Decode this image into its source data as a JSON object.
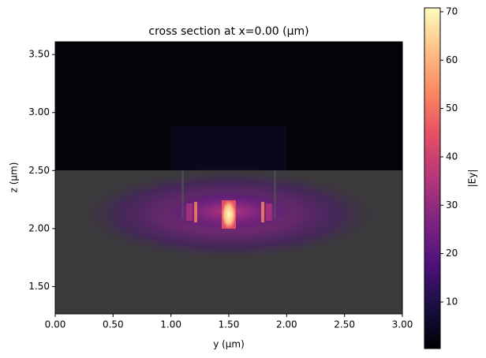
{
  "chart_data": {
    "type": "heatmap",
    "title": "cross section at x=0.00 (μm)",
    "x_label": "y (μm)",
    "y_label": "z (μm)",
    "xlim": [
      0,
      3
    ],
    "ylim": [
      1.265,
      3.61
    ],
    "xticks": [
      {
        "value": 0,
        "label": "0.00"
      },
      {
        "value": 0.5,
        "label": "0.50"
      },
      {
        "value": 1,
        "label": "1.00"
      },
      {
        "value": 1.5,
        "label": "1.50"
      },
      {
        "value": 2,
        "label": "2.00"
      },
      {
        "value": 2.5,
        "label": "2.50"
      },
      {
        "value": 3,
        "label": "3.00"
      }
    ],
    "yticks": [
      {
        "value": 1.5,
        "label": "1.50"
      },
      {
        "value": 2,
        "label": "2.00"
      },
      {
        "value": 2.5,
        "label": "2.50"
      },
      {
        "value": 3,
        "label": "3.00"
      },
      {
        "value": 3.5,
        "label": "3.50"
      }
    ],
    "colorbar_label": "|Ey|",
    "clim": [
      0.38,
      70.8
    ],
    "cticks": [
      10,
      20,
      30,
      40,
      50,
      60,
      70
    ]
  }
}
